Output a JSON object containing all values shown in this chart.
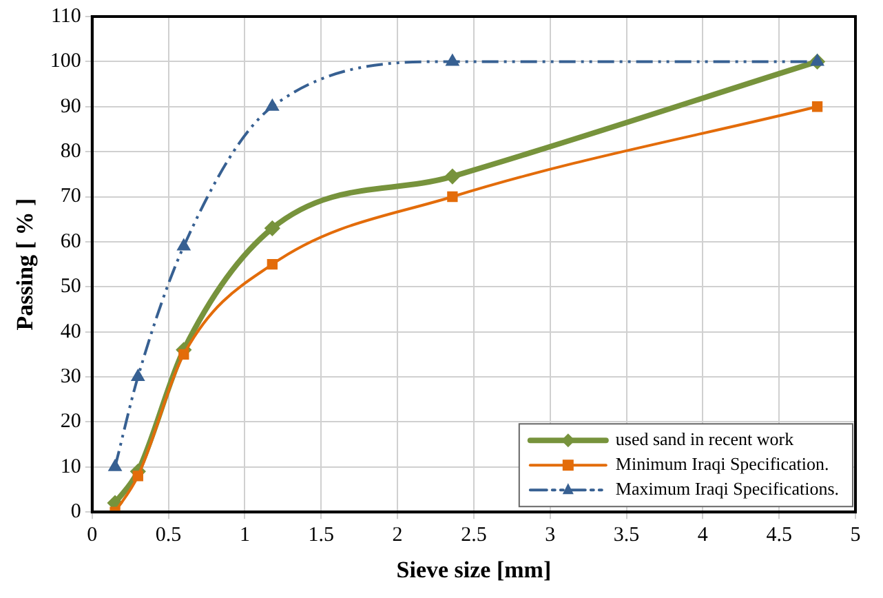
{
  "chart_data": {
    "type": "line",
    "xlabel": "Sieve size [mm]",
    "ylabel": "Passing [ % ]",
    "xlim": [
      0,
      5
    ],
    "xticks": [
      0,
      0.5,
      1,
      1.5,
      2,
      2.5,
      3,
      3.5,
      4,
      4.5,
      5
    ],
    "ylim": [
      0,
      110
    ],
    "yticks": [
      0,
      10,
      20,
      30,
      40,
      50,
      60,
      70,
      80,
      90,
      100,
      110
    ],
    "grid": true,
    "legend": "bottom right",
    "x": [
      0.15,
      0.3,
      0.6,
      1.18,
      2.36,
      4.75
    ],
    "series": [
      {
        "name": "used sand in recent work",
        "color": "#77933c",
        "values": [
          2,
          9,
          36,
          63,
          74.5,
          100
        ],
        "marker": "diamond",
        "line_style": "solid"
      },
      {
        "name": "Minimum Iraqi Specification.",
        "color": "#e36c0a",
        "values": [
          0,
          8,
          35,
          55,
          70,
          90
        ],
        "marker": "square",
        "line_style": "solid"
      },
      {
        "name": "Maximum Iraqi Specifications.",
        "color": "#376092",
        "values": [
          10,
          30,
          59,
          90,
          100,
          100
        ],
        "marker": "triangle",
        "line_style": "dashed"
      }
    ]
  }
}
